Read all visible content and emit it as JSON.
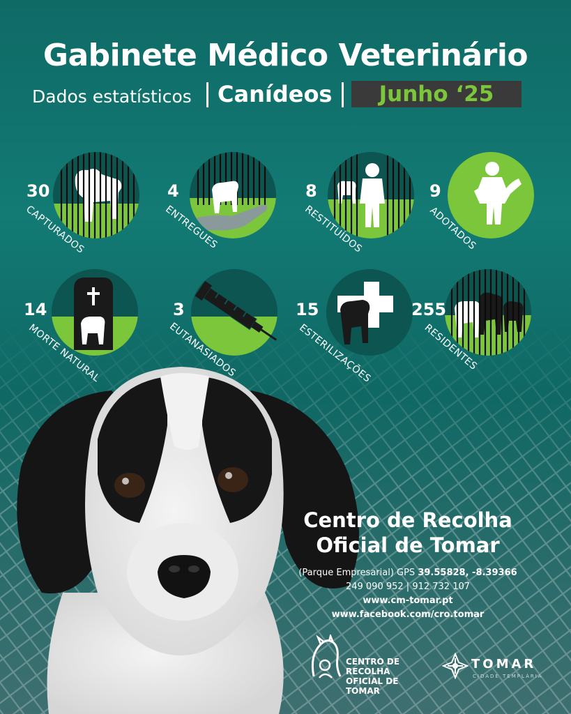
{
  "header": {
    "title": "Gabinete Médico Veterinário",
    "subtitle": "Dados estatísticos",
    "category": "Canídeos",
    "date": "Junho ‘25"
  },
  "stats": [
    {
      "value": "30",
      "label": "CAPTURADOS",
      "icon": "dog-behind-bars-icon"
    },
    {
      "value": "4",
      "label": "ENTREGUES",
      "icon": "puppy-in-hand-icon"
    },
    {
      "value": "8",
      "label": "RESTITUÍDOS",
      "icon": "child-with-dog-icon"
    },
    {
      "value": "9",
      "label": "ADOTADOS",
      "icon": "child-hugging-dog-icon"
    },
    {
      "value": "14",
      "label": "MORTE NATURAL",
      "icon": "grave-icon"
    },
    {
      "value": "3",
      "label": "EUTANASIADOS",
      "icon": "syringe-icon"
    },
    {
      "value": "15",
      "label": "ESTERILIZAÇÕES",
      "icon": "medical-cross-icon"
    },
    {
      "value": "255",
      "label": "RESIDENTES",
      "icon": "dogs-behind-bars-icon"
    }
  ],
  "center": {
    "name_line1": "Centro de Recolha",
    "name_line2": "Oficial de Tomar",
    "address_prefix": "(Parque Empresarial) GPS ",
    "gps": "39.55828, -8.39366",
    "phones": "249 090 952  |  912 732 107",
    "website": "www.cm-tomar.pt",
    "facebook": "www.facebook.com/cro.tomar"
  },
  "logos": {
    "cro_line1": "CENTRO DE RECOLHA",
    "cro_line2": "OFICIAL DE TOMAR",
    "tomar": "TOMAR",
    "tomar_tagline": "CIDADE TEMPLÁRIA"
  },
  "colors": {
    "background": "#0f6a66",
    "accent_green": "#7cc63b",
    "date_box": "#3a3a3a"
  }
}
